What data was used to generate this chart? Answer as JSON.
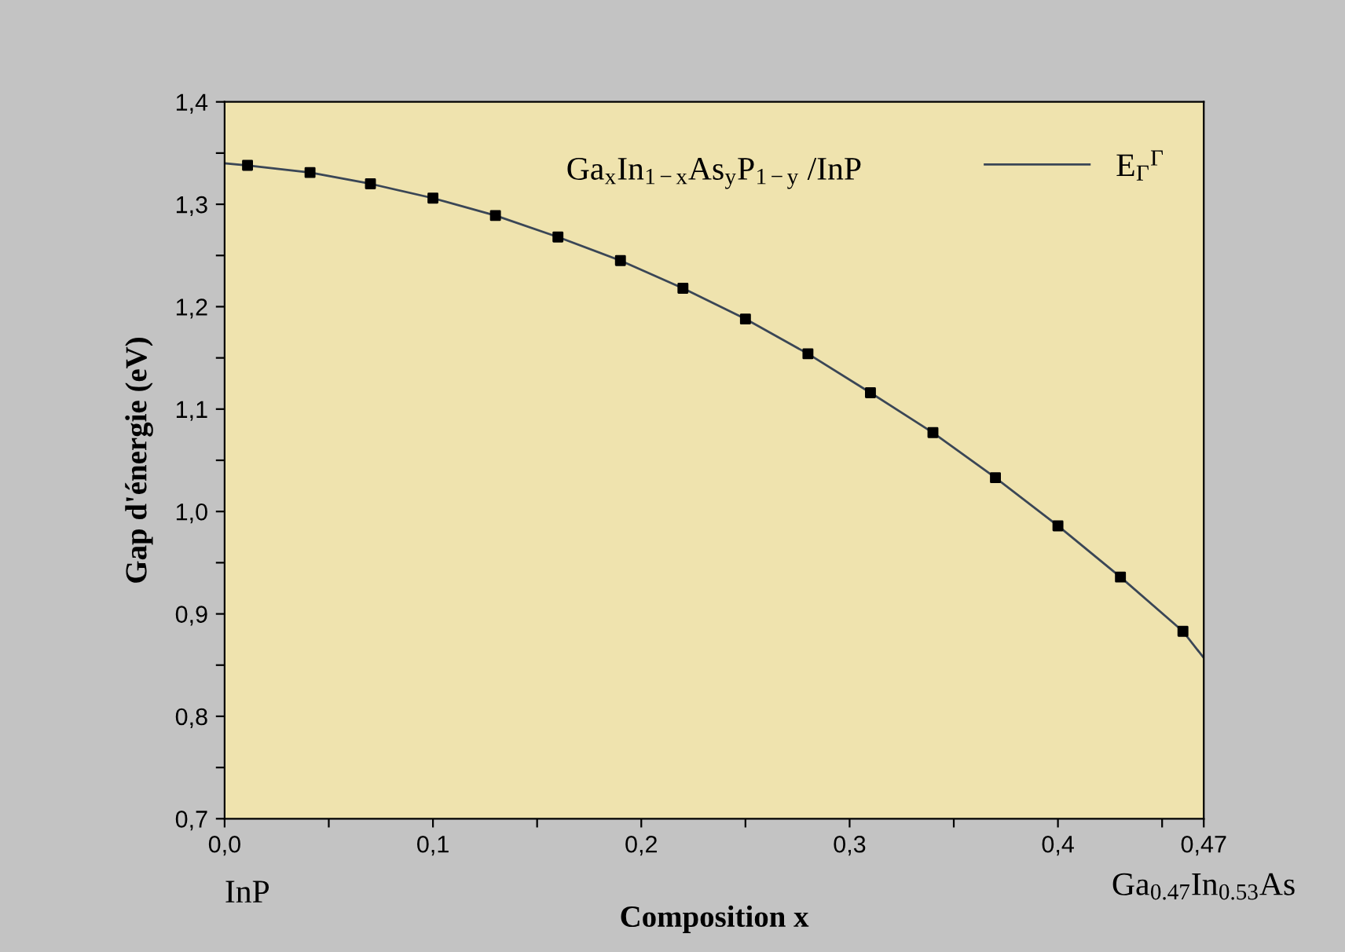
{
  "chart_data": {
    "type": "line",
    "xlabel": "Composition x",
    "ylabel": "Gap d'énergie (eV)",
    "series": [
      {
        "name": "E$_{Γ}$$^{Γ}$",
        "color": "#3a4656",
        "marker": "none",
        "line_style": "solid",
        "x": [
          0.0,
          0.011,
          0.041,
          0.07,
          0.1,
          0.13,
          0.16,
          0.19,
          0.22,
          0.25,
          0.28,
          0.31,
          0.34,
          0.37,
          0.4,
          0.43,
          0.46,
          0.47
        ],
        "values": [
          1.34,
          1.338,
          1.331,
          1.32,
          1.306,
          1.289,
          1.268,
          1.245,
          1.218,
          1.188,
          1.154,
          1.116,
          1.077,
          1.033,
          0.986,
          0.936,
          0.883,
          0.857
        ]
      },
      {
        "type": "scatter",
        "color": "#000000",
        "marker": "square",
        "x": [
          0.011,
          0.041,
          0.07,
          0.1,
          0.13,
          0.16,
          0.19,
          0.22,
          0.25,
          0.28,
          0.31,
          0.34,
          0.37,
          0.4,
          0.43,
          0.46
        ],
        "values": [
          1.338,
          1.331,
          1.32,
          1.306,
          1.289,
          1.268,
          1.245,
          1.218,
          1.188,
          1.154,
          1.116,
          1.077,
          1.033,
          0.986,
          0.936,
          0.883
        ]
      }
    ],
    "xlim": [
      0.0,
      0.47
    ],
    "xticks": [
      {
        "value": 0.0,
        "label": "0,0"
      },
      {
        "value": 0.05,
        "label": null
      },
      {
        "value": 0.1,
        "label": "0,1"
      },
      {
        "value": 0.15,
        "label": null
      },
      {
        "value": 0.2,
        "label": "0,2"
      },
      {
        "value": 0.25,
        "label": null
      },
      {
        "value": 0.3,
        "label": "0,3"
      },
      {
        "value": 0.35,
        "label": null
      },
      {
        "value": 0.4,
        "label": "0,4"
      },
      {
        "value": 0.45,
        "label": null
      },
      {
        "value": 0.47,
        "label": "0,47"
      }
    ],
    "ylim": [
      0.7,
      1.4
    ],
    "yticks": [
      {
        "value": 0.7,
        "label": "0,7"
      },
      {
        "value": 0.75,
        "label": null
      },
      {
        "value": 0.8,
        "label": "0,8"
      },
      {
        "value": 0.85,
        "label": null
      },
      {
        "value": 0.9,
        "label": "0,9"
      },
      {
        "value": 0.95,
        "label": null
      },
      {
        "value": 1.0,
        "label": "1,0"
      },
      {
        "value": 1.05,
        "label": null
      },
      {
        "value": 1.1,
        "label": "1,1"
      },
      {
        "value": 1.15,
        "label": null
      },
      {
        "value": 1.2,
        "label": "1,2"
      },
      {
        "value": 1.25,
        "label": null
      },
      {
        "value": 1.3,
        "label": "1,3"
      },
      {
        "value": 1.35,
        "label": null
      },
      {
        "value": 1.4,
        "label": "1,4"
      }
    ],
    "grid": false,
    "legend": "top right",
    "annotations": [
      "Ga$_{x}$In$_{1−x}$As$_{y}$P$_{1−y}$ /InP",
      "InP",
      "Ga$_{0.47}$In$_{0.53}$As"
    ]
  }
}
